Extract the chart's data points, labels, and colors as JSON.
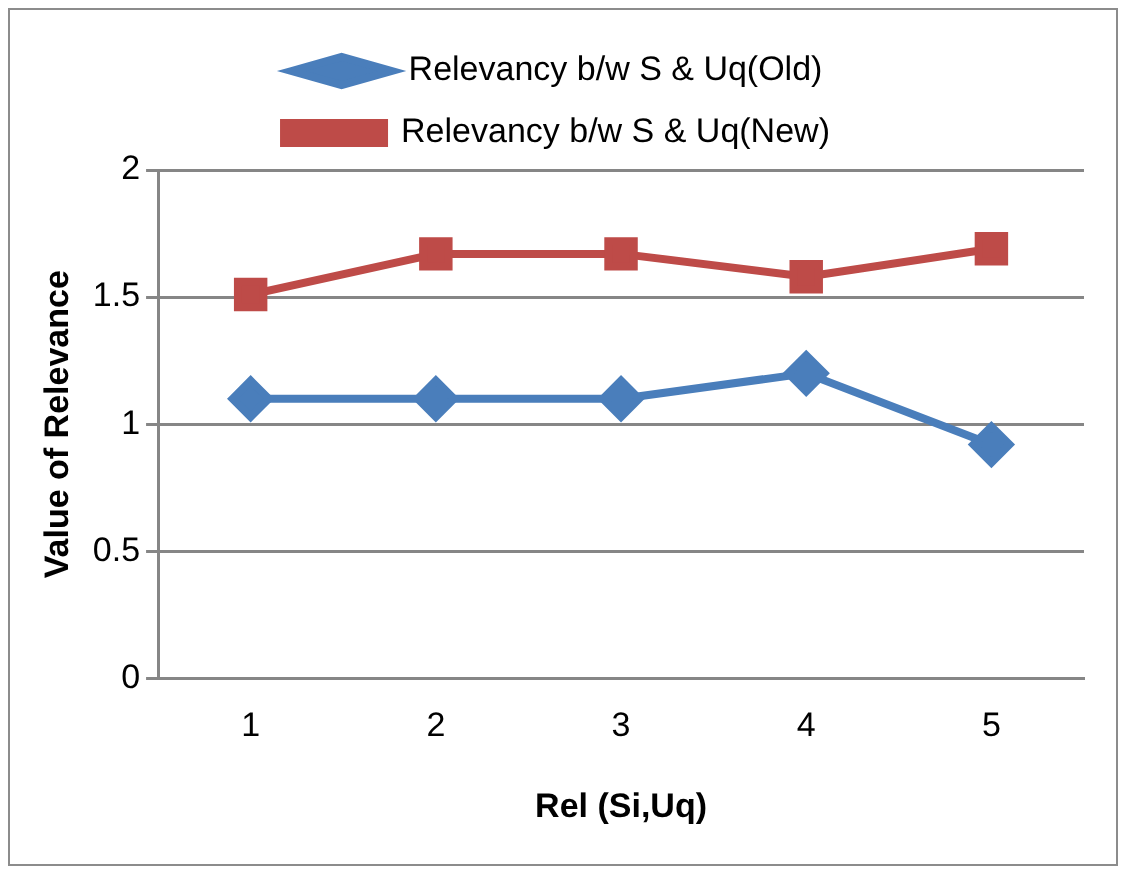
{
  "chart_data": {
    "type": "line",
    "xlabel": "Rel (Si,Uq)",
    "ylabel": "Value of Relevance",
    "categories": [
      "1",
      "2",
      "3",
      "4",
      "5"
    ],
    "series": [
      {
        "name": "Relevancy b/w S & Uq(Old)",
        "color": "#4a7ebb",
        "marker": "diamond",
        "values": [
          1.1,
          1.1,
          1.1,
          1.2,
          0.92
        ]
      },
      {
        "name": "Relevancy b/w S & Uq(New)",
        "color": "#be4b48",
        "marker": "square",
        "values": [
          1.51,
          1.67,
          1.67,
          1.58,
          1.69
        ]
      }
    ],
    "ylim": [
      0,
      2
    ],
    "yticks": [
      0,
      0.5,
      1,
      1.5,
      2
    ],
    "grid": "y",
    "legend": "top"
  }
}
